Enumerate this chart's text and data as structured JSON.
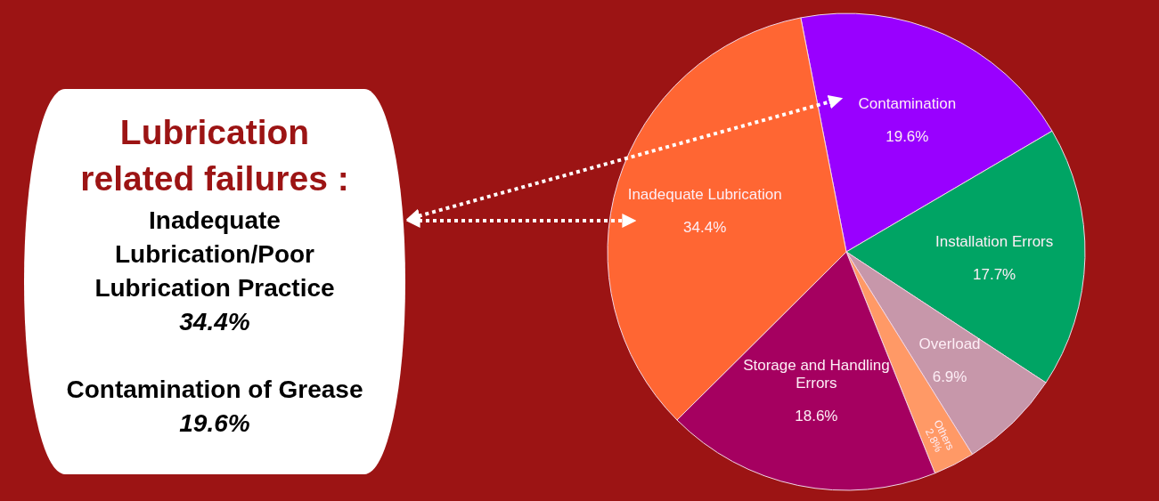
{
  "chart_data": [
    {
      "type": "other",
      "title": "Lubrication related failures :",
      "annotations": [
        "Inadequate Lubrication/Poor Lubrication Practice",
        "34.4%",
        "Contamination of Grease",
        "19.6%"
      ]
    },
    {
      "type": "pie",
      "categories": [
        "Contamination",
        "Installation Errors",
        "Overload",
        "Others",
        "Storage and Handling Errors",
        "Inadequate Lubrication"
      ],
      "values": [
        19.6,
        17.7,
        6.9,
        2.8,
        18.6,
        34.4
      ],
      "value_labels": [
        "19.6%",
        "17.7%",
        "6.9%",
        "2.8%",
        "18.6%",
        "34.4%"
      ],
      "colors": [
        "#9900ff",
        "#00a464",
        "#c797aa",
        "#ff9966",
        "#a50060",
        "#ff6633"
      ]
    }
  ]
}
